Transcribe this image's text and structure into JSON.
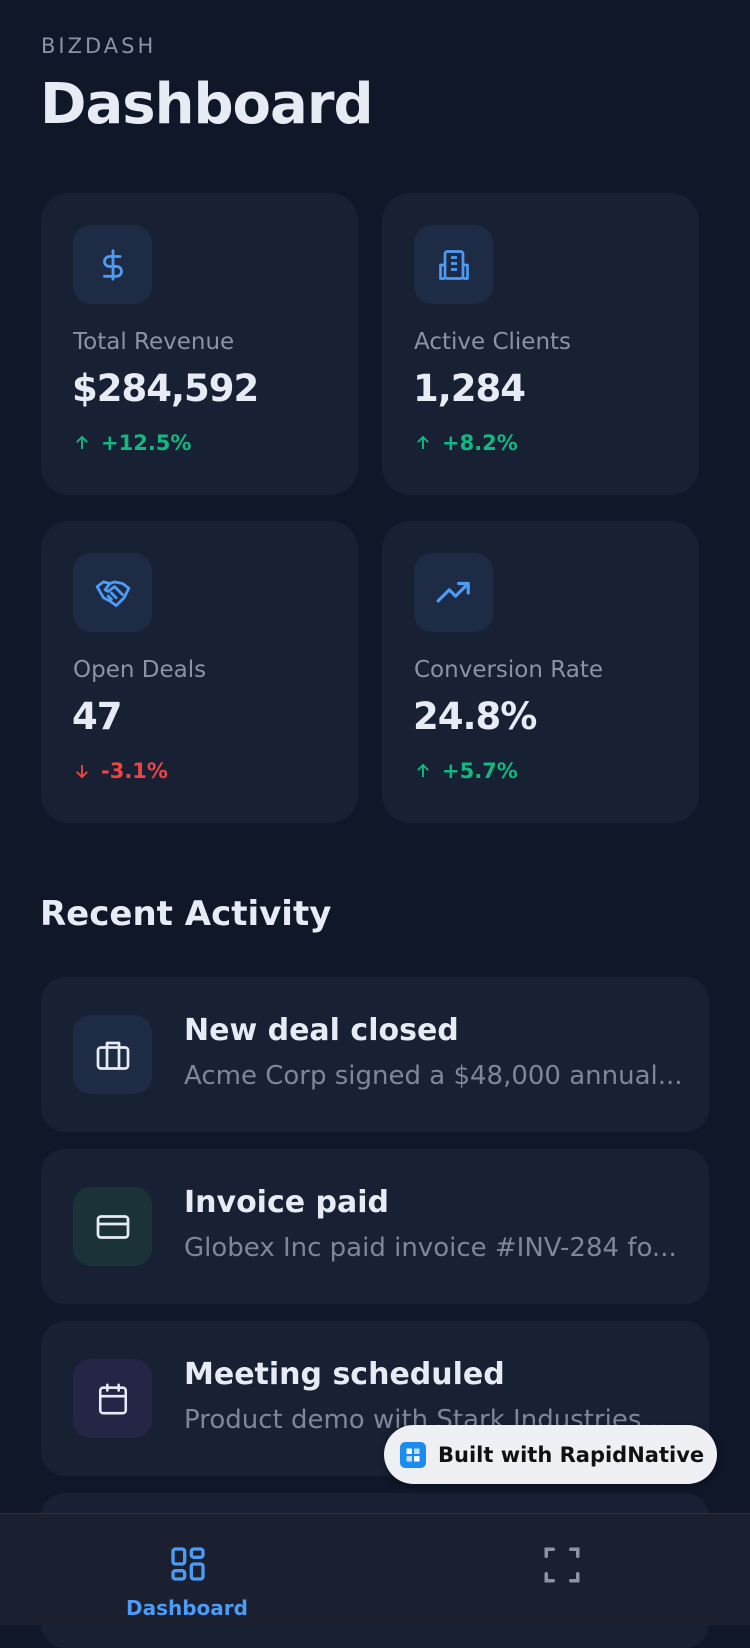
{
  "header": {
    "eyebrow": "BIZDASH",
    "title": "Dashboard"
  },
  "stats": [
    {
      "label": "Total Revenue",
      "value": "$284,592",
      "change": "+12.5%"
    },
    {
      "label": "Active Clients",
      "value": "1,284",
      "change": "+8.2%"
    },
    {
      "label": "Open Deals",
      "value": "47",
      "change": "-3.1%"
    },
    {
      "label": "Conversion Rate",
      "value": "24.8%",
      "change": "+5.7%"
    }
  ],
  "activity": {
    "title": "Recent Activity",
    "items": [
      {
        "title": "New deal closed",
        "description": "Acme Corp signed a $48,000 annual..."
      },
      {
        "title": "Invoice paid",
        "description": "Globex Inc paid invoice #INV-284 fo..."
      },
      {
        "title": "Meeting scheduled",
        "description": "Product demo with Stark Industries..."
      }
    ]
  },
  "nav": {
    "tabs": [
      {
        "label": "Dashboard"
      }
    ]
  },
  "badge": {
    "label": "Built with RapidNative"
  }
}
